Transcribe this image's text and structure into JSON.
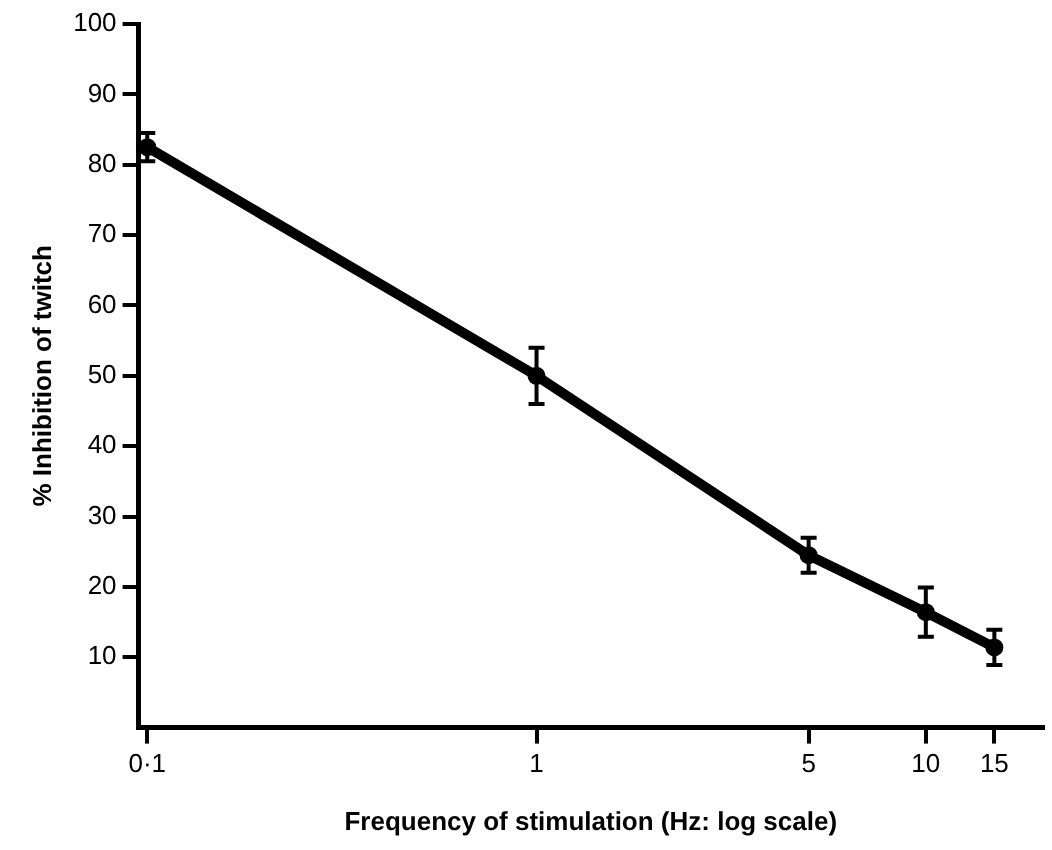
{
  "chart_data": {
    "type": "line",
    "xlabel": "Frequency of stimulation (Hz: log scale)",
    "ylabel": "% Inhibition of twitch",
    "x": [
      0.1,
      1,
      5,
      10,
      15
    ],
    "values": [
      82.5,
      50,
      24.5,
      16.4,
      11.4
    ],
    "errors": [
      2,
      4,
      2.5,
      3.5,
      2.5
    ],
    "color": "#000000",
    "log": "x",
    "marker": "circle",
    "line_style": "solid",
    "grid": false,
    "legend": false,
    "xlim": [
      0.095,
      20
    ],
    "xticks": [
      {
        "value": 0.1,
        "label": "0·1"
      },
      1,
      5,
      10,
      15
    ],
    "ylim": [
      0,
      100
    ],
    "yticks": [
      10,
      20,
      30,
      40,
      50,
      60,
      70,
      80,
      90,
      100
    ]
  }
}
